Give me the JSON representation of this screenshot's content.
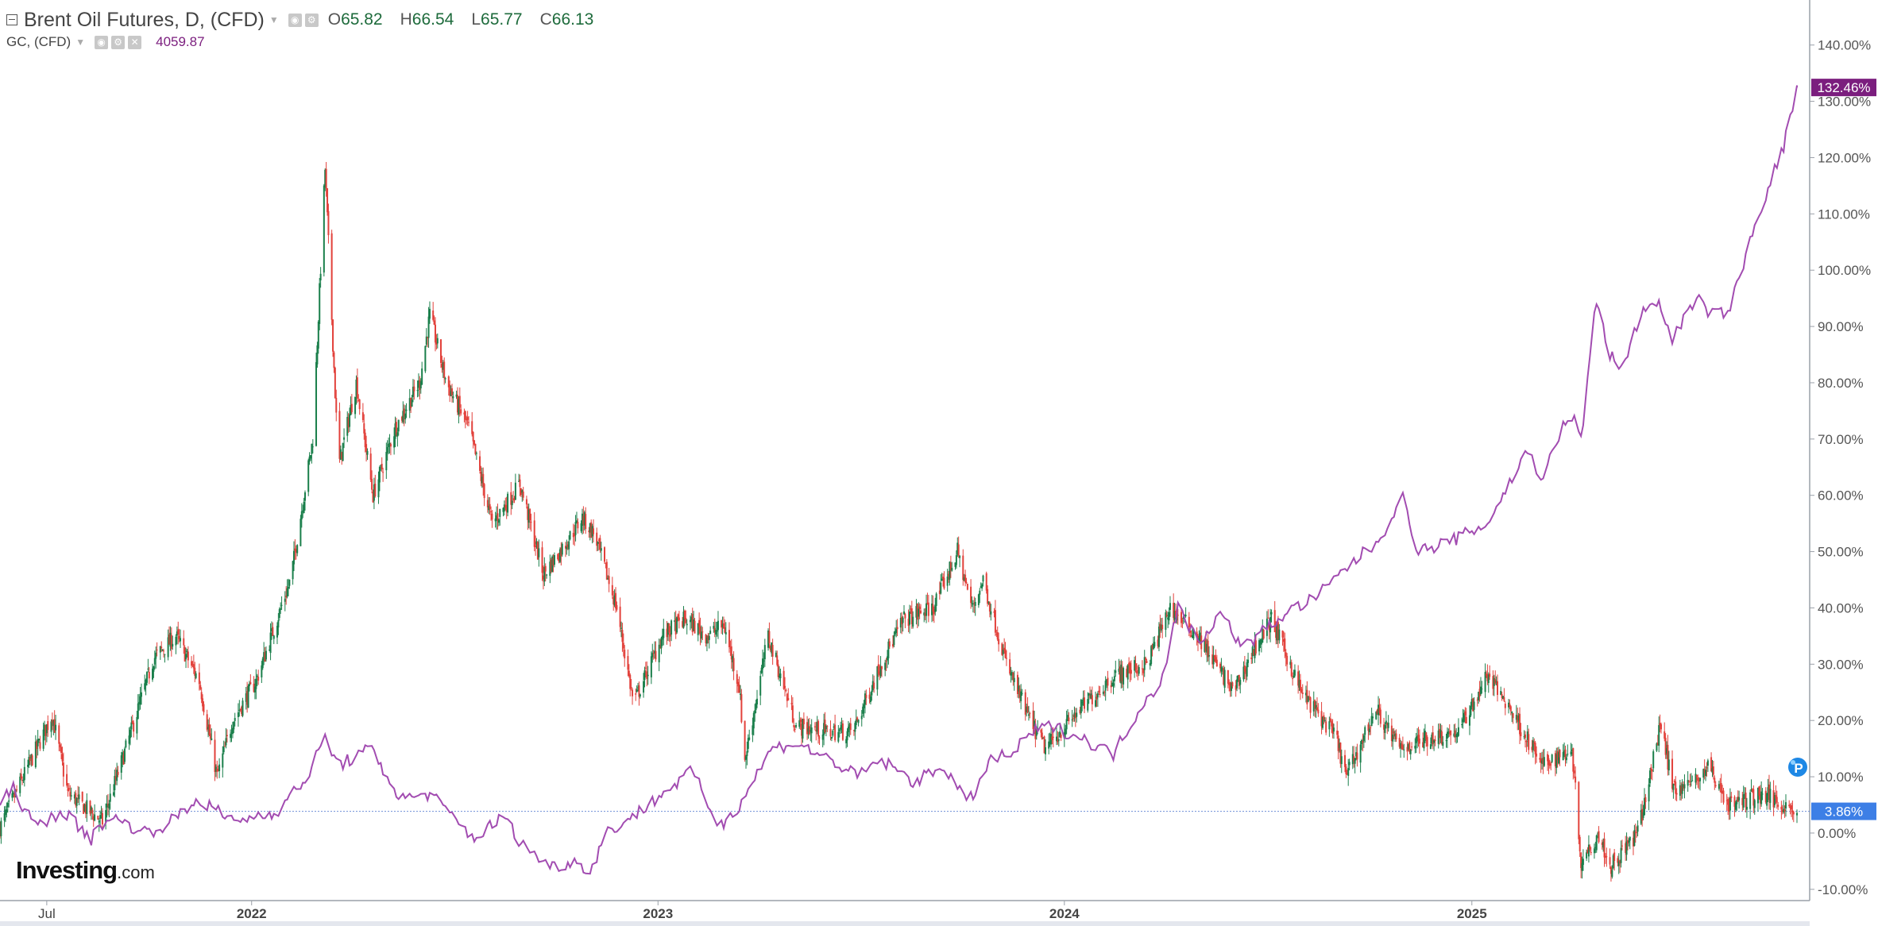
{
  "legend": {
    "main_title": "Brent Oil Futures, D, (CFD)",
    "ohlc": [
      {
        "key": "O",
        "value": "65.82"
      },
      {
        "key": "H",
        "value": "66.54"
      },
      {
        "key": "L",
        "value": "65.77"
      },
      {
        "key": "C",
        "value": "66.13"
      }
    ],
    "compare_title": "GC, (CFD)",
    "compare_value": "4059.87"
  },
  "logo": {
    "brand": "Investing",
    "domain": ".com"
  },
  "colors": {
    "up_candle": "#1a7f4b",
    "down_candle": "#e2413b",
    "compare_line": "#a24cb1",
    "compare_badge": "#7b1e7e",
    "last_price_badge": "#3d7fe6",
    "price_line": "#6f8fd8"
  },
  "chart_data": {
    "type": "line",
    "title": "",
    "xlabel": "",
    "ylabel": "",
    "y_unit": "%",
    "ylim": [
      -12,
      148
    ],
    "x_range": [
      "2021-05-20",
      "2025-10-20"
    ],
    "x_tick_labels": [
      {
        "label": "Jul",
        "date": "2021-07-01"
      },
      {
        "label": "2022",
        "date": "2022-01-01"
      },
      {
        "label": "2023",
        "date": "2023-01-01"
      },
      {
        "label": "2024",
        "date": "2024-01-01"
      },
      {
        "label": "2025",
        "date": "2025-01-01"
      }
    ],
    "y_ticks": [
      "-10.00%",
      "0.00%",
      "10.00%",
      "20.00%",
      "30.00%",
      "40.00%",
      "50.00%",
      "60.00%",
      "70.00%",
      "80.00%",
      "90.00%",
      "100.00%",
      "110.00%",
      "120.00%",
      "130.00%",
      "140.00%"
    ],
    "y_tick_values": [
      -10,
      0,
      10,
      20,
      30,
      40,
      50,
      60,
      70,
      80,
      90,
      100,
      110,
      120,
      130,
      140
    ],
    "grid": false,
    "last_price_line": 3.86,
    "badges": [
      {
        "series": "GC, (CFD)",
        "label": "132.46%",
        "value": 132.46
      },
      {
        "series": "Brent Oil Futures, D, (CFD)",
        "label": "3.86%",
        "value": 3.86
      }
    ],
    "series": [
      {
        "name": "Brent Oil Futures, D, (CFD)",
        "style": "candlestick",
        "anchors": [
          [
            "2021-05-20",
            1
          ],
          [
            "2021-06-10",
            10
          ],
          [
            "2021-07-06",
            21
          ],
          [
            "2021-07-20",
            7
          ],
          [
            "2021-08-20",
            2
          ],
          [
            "2021-09-10",
            15
          ],
          [
            "2021-10-05",
            31
          ],
          [
            "2021-10-25",
            35
          ],
          [
            "2021-11-15",
            27
          ],
          [
            "2021-12-01",
            10
          ],
          [
            "2021-12-15",
            20
          ],
          [
            "2022-01-05",
            27
          ],
          [
            "2022-02-05",
            45
          ],
          [
            "2022-02-25",
            70
          ],
          [
            "2022-03-08",
            118
          ],
          [
            "2022-03-20",
            65
          ],
          [
            "2022-04-05",
            80
          ],
          [
            "2022-04-20",
            60
          ],
          [
            "2022-05-10",
            72
          ],
          [
            "2022-06-01",
            80
          ],
          [
            "2022-06-10",
            92
          ],
          [
            "2022-06-25",
            80
          ],
          [
            "2022-07-15",
            72
          ],
          [
            "2022-08-05",
            55
          ],
          [
            "2022-08-30",
            62
          ],
          [
            "2022-09-20",
            46
          ],
          [
            "2022-10-05",
            50
          ],
          [
            "2022-10-25",
            56
          ],
          [
            "2022-11-05",
            53
          ],
          [
            "2022-11-25",
            40
          ],
          [
            "2022-12-10",
            23
          ],
          [
            "2023-01-05",
            35
          ],
          [
            "2023-01-25",
            38
          ],
          [
            "2023-02-15",
            35
          ],
          [
            "2023-03-01",
            37
          ],
          [
            "2023-03-15",
            26
          ],
          [
            "2023-03-20",
            13
          ],
          [
            "2023-04-10",
            35
          ],
          [
            "2023-05-05",
            19
          ],
          [
            "2023-06-01",
            18
          ],
          [
            "2023-06-25",
            18
          ],
          [
            "2023-07-20",
            30
          ],
          [
            "2023-08-10",
            38
          ],
          [
            "2023-09-05",
            40
          ],
          [
            "2023-09-27",
            50
          ],
          [
            "2023-10-10",
            40
          ],
          [
            "2023-10-20",
            45
          ],
          [
            "2023-11-10",
            30
          ],
          [
            "2023-12-01",
            20
          ],
          [
            "2023-12-15",
            15
          ],
          [
            "2024-01-15",
            22
          ],
          [
            "2024-02-15",
            28
          ],
          [
            "2024-03-15",
            30
          ],
          [
            "2024-04-05",
            40
          ],
          [
            "2024-04-30",
            35
          ],
          [
            "2024-06-01",
            25
          ],
          [
            "2024-06-20",
            33
          ],
          [
            "2024-07-05",
            38
          ],
          [
            "2024-08-01",
            25
          ],
          [
            "2024-09-01",
            17
          ],
          [
            "2024-09-10",
            10
          ],
          [
            "2024-10-07",
            22
          ],
          [
            "2024-10-28",
            15
          ],
          [
            "2024-11-25",
            17
          ],
          [
            "2024-12-20",
            18
          ],
          [
            "2025-01-15",
            28
          ],
          [
            "2025-02-05",
            22
          ],
          [
            "2025-03-05",
            12
          ],
          [
            "2025-04-01",
            15
          ],
          [
            "2025-04-09",
            -5
          ],
          [
            "2025-04-25",
            0
          ],
          [
            "2025-05-05",
            -6
          ],
          [
            "2025-05-30",
            0
          ],
          [
            "2025-06-10",
            10
          ],
          [
            "2025-06-20",
            20
          ],
          [
            "2025-06-30",
            8
          ],
          [
            "2025-07-20",
            9
          ],
          [
            "2025-08-01",
            12
          ],
          [
            "2025-08-20",
            5
          ],
          [
            "2025-09-20",
            7
          ],
          [
            "2025-10-20",
            3.86
          ]
        ]
      },
      {
        "name": "GC, (CFD)",
        "style": "line",
        "anchors": [
          [
            "2021-05-20",
            5
          ],
          [
            "2021-06-01",
            8
          ],
          [
            "2021-06-20",
            1
          ],
          [
            "2021-07-15",
            4
          ],
          [
            "2021-08-10",
            -1
          ],
          [
            "2021-08-25",
            3
          ],
          [
            "2021-09-30",
            0
          ],
          [
            "2021-10-20",
            2
          ],
          [
            "2021-11-15",
            6
          ],
          [
            "2021-12-15",
            2
          ],
          [
            "2022-01-25",
            4
          ],
          [
            "2022-02-20",
            10
          ],
          [
            "2022-03-08",
            17
          ],
          [
            "2022-03-20",
            12
          ],
          [
            "2022-04-18",
            15
          ],
          [
            "2022-05-15",
            6
          ],
          [
            "2022-06-10",
            7
          ],
          [
            "2022-07-05",
            2
          ],
          [
            "2022-07-20",
            -1
          ],
          [
            "2022-08-15",
            3
          ],
          [
            "2022-09-01",
            -2
          ],
          [
            "2022-09-27",
            -6
          ],
          [
            "2022-10-20",
            -5
          ],
          [
            "2022-11-01",
            -7
          ],
          [
            "2022-11-15",
            0
          ],
          [
            "2022-12-10",
            3
          ],
          [
            "2023-01-05",
            7
          ],
          [
            "2023-02-01",
            11
          ],
          [
            "2023-02-25",
            1
          ],
          [
            "2023-03-15",
            5
          ],
          [
            "2023-04-13",
            15
          ],
          [
            "2023-05-04",
            16
          ],
          [
            "2023-06-05",
            13
          ],
          [
            "2023-06-29",
            10
          ],
          [
            "2023-07-20",
            13
          ],
          [
            "2023-08-20",
            9
          ],
          [
            "2023-09-15",
            12
          ],
          [
            "2023-10-06",
            5
          ],
          [
            "2023-10-27",
            13
          ],
          [
            "2023-11-15",
            14
          ],
          [
            "2023-12-03",
            18
          ],
          [
            "2023-12-20",
            19
          ],
          [
            "2024-01-15",
            17
          ],
          [
            "2024-02-14",
            14
          ],
          [
            "2024-03-08",
            22
          ],
          [
            "2024-03-28",
            27
          ],
          [
            "2024-04-12",
            40
          ],
          [
            "2024-05-01",
            34
          ],
          [
            "2024-05-20",
            39
          ],
          [
            "2024-06-10",
            33
          ],
          [
            "2024-07-17",
            39
          ],
          [
            "2024-08-15",
            42
          ],
          [
            "2024-09-15",
            48
          ],
          [
            "2024-10-10",
            52
          ],
          [
            "2024-10-30",
            60
          ],
          [
            "2024-11-14",
            50
          ],
          [
            "2024-12-15",
            52
          ],
          [
            "2025-01-15",
            55
          ],
          [
            "2025-02-20",
            68
          ],
          [
            "2025-03-05",
            63
          ],
          [
            "2025-03-30",
            75
          ],
          [
            "2025-04-10",
            70
          ],
          [
            "2025-04-22",
            95
          ],
          [
            "2025-05-05",
            85
          ],
          [
            "2025-05-15",
            82
          ],
          [
            "2025-06-01",
            92
          ],
          [
            "2025-06-15",
            95
          ],
          [
            "2025-06-30",
            88
          ],
          [
            "2025-07-22",
            95
          ],
          [
            "2025-08-05",
            92
          ],
          [
            "2025-08-20",
            93
          ],
          [
            "2025-09-01",
            100
          ],
          [
            "2025-09-10",
            107
          ],
          [
            "2025-09-25",
            115
          ],
          [
            "2025-10-08",
            122
          ],
          [
            "2025-10-20",
            132.46
          ]
        ]
      }
    ]
  }
}
